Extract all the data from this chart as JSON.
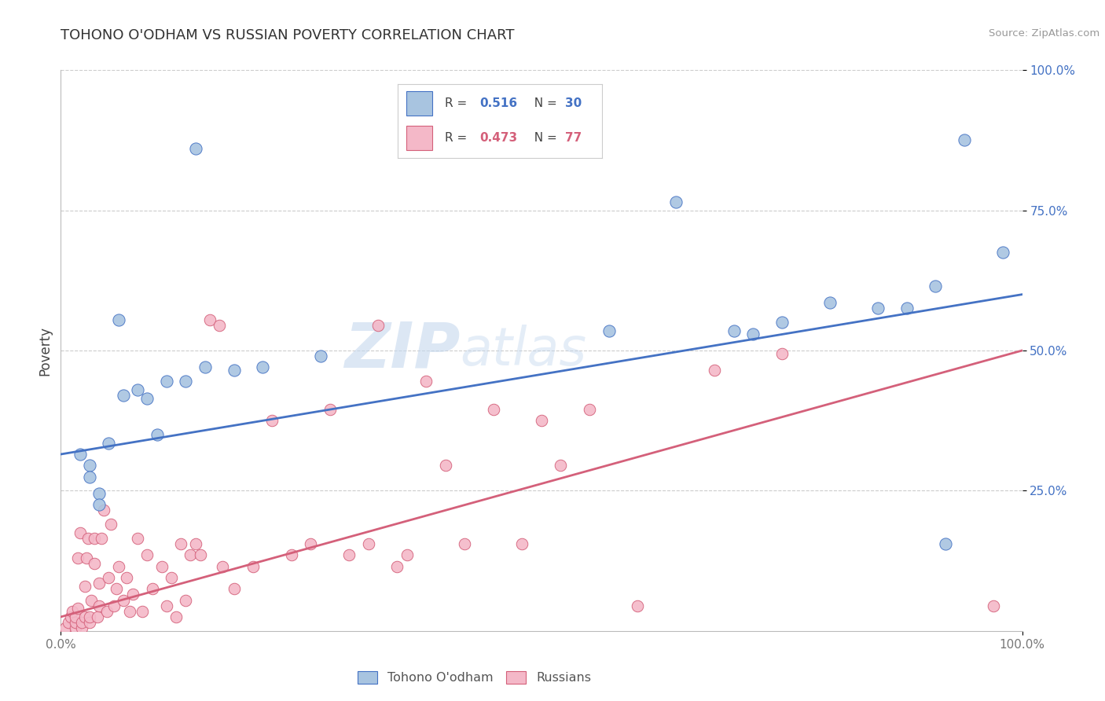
{
  "title": "TOHONO O'ODHAM VS RUSSIAN POVERTY CORRELATION CHART",
  "source": "Source: ZipAtlas.com",
  "ylabel": "Poverty",
  "xlim": [
    0,
    1.0
  ],
  "ylim": [
    0,
    1.0
  ],
  "blue_color": "#a8c4e0",
  "blue_line_color": "#4472c4",
  "pink_color": "#f4b8c8",
  "pink_line_color": "#d4607a",
  "tohono_scatter": [
    [
      0.02,
      0.315
    ],
    [
      0.03,
      0.295
    ],
    [
      0.03,
      0.275
    ],
    [
      0.04,
      0.245
    ],
    [
      0.04,
      0.225
    ],
    [
      0.05,
      0.335
    ],
    [
      0.06,
      0.555
    ],
    [
      0.065,
      0.42
    ],
    [
      0.08,
      0.43
    ],
    [
      0.09,
      0.415
    ],
    [
      0.1,
      0.35
    ],
    [
      0.11,
      0.445
    ],
    [
      0.13,
      0.445
    ],
    [
      0.15,
      0.47
    ],
    [
      0.18,
      0.465
    ],
    [
      0.21,
      0.47
    ],
    [
      0.27,
      0.49
    ],
    [
      0.14,
      0.86
    ],
    [
      0.57,
      0.535
    ],
    [
      0.64,
      0.765
    ],
    [
      0.7,
      0.535
    ],
    [
      0.72,
      0.53
    ],
    [
      0.75,
      0.55
    ],
    [
      0.8,
      0.585
    ],
    [
      0.85,
      0.575
    ],
    [
      0.88,
      0.575
    ],
    [
      0.91,
      0.615
    ],
    [
      0.94,
      0.875
    ],
    [
      0.92,
      0.155
    ],
    [
      0.98,
      0.675
    ]
  ],
  "russian_scatter": [
    [
      0.005,
      0.005
    ],
    [
      0.008,
      0.015
    ],
    [
      0.01,
      0.025
    ],
    [
      0.012,
      0.035
    ],
    [
      0.015,
      0.005
    ],
    [
      0.015,
      0.015
    ],
    [
      0.015,
      0.025
    ],
    [
      0.018,
      0.04
    ],
    [
      0.018,
      0.13
    ],
    [
      0.02,
      0.175
    ],
    [
      0.022,
      0.005
    ],
    [
      0.022,
      0.015
    ],
    [
      0.025,
      0.025
    ],
    [
      0.025,
      0.08
    ],
    [
      0.027,
      0.13
    ],
    [
      0.028,
      0.165
    ],
    [
      0.03,
      0.015
    ],
    [
      0.03,
      0.025
    ],
    [
      0.032,
      0.055
    ],
    [
      0.035,
      0.12
    ],
    [
      0.035,
      0.165
    ],
    [
      0.038,
      0.025
    ],
    [
      0.04,
      0.045
    ],
    [
      0.04,
      0.085
    ],
    [
      0.042,
      0.165
    ],
    [
      0.045,
      0.215
    ],
    [
      0.048,
      0.035
    ],
    [
      0.05,
      0.095
    ],
    [
      0.052,
      0.19
    ],
    [
      0.055,
      0.045
    ],
    [
      0.058,
      0.075
    ],
    [
      0.06,
      0.115
    ],
    [
      0.065,
      0.055
    ],
    [
      0.068,
      0.095
    ],
    [
      0.072,
      0.035
    ],
    [
      0.075,
      0.065
    ],
    [
      0.08,
      0.165
    ],
    [
      0.085,
      0.035
    ],
    [
      0.09,
      0.135
    ],
    [
      0.095,
      0.075
    ],
    [
      0.105,
      0.115
    ],
    [
      0.11,
      0.045
    ],
    [
      0.115,
      0.095
    ],
    [
      0.12,
      0.025
    ],
    [
      0.125,
      0.155
    ],
    [
      0.13,
      0.055
    ],
    [
      0.135,
      0.135
    ],
    [
      0.14,
      0.155
    ],
    [
      0.145,
      0.135
    ],
    [
      0.155,
      0.555
    ],
    [
      0.165,
      0.545
    ],
    [
      0.168,
      0.115
    ],
    [
      0.18,
      0.075
    ],
    [
      0.2,
      0.115
    ],
    [
      0.22,
      0.375
    ],
    [
      0.24,
      0.135
    ],
    [
      0.26,
      0.155
    ],
    [
      0.28,
      0.395
    ],
    [
      0.3,
      0.135
    ],
    [
      0.32,
      0.155
    ],
    [
      0.33,
      0.545
    ],
    [
      0.35,
      0.115
    ],
    [
      0.36,
      0.135
    ],
    [
      0.38,
      0.445
    ],
    [
      0.4,
      0.295
    ],
    [
      0.42,
      0.155
    ],
    [
      0.45,
      0.395
    ],
    [
      0.48,
      0.155
    ],
    [
      0.5,
      0.375
    ],
    [
      0.52,
      0.295
    ],
    [
      0.55,
      0.395
    ],
    [
      0.6,
      0.045
    ],
    [
      0.68,
      0.465
    ],
    [
      0.75,
      0.495
    ],
    [
      0.97,
      0.045
    ]
  ],
  "blue_line_x": [
    0.0,
    1.0
  ],
  "blue_line_y": [
    0.315,
    0.6
  ],
  "pink_line_x": [
    0.0,
    1.0
  ],
  "pink_line_y": [
    0.025,
    0.5
  ],
  "watermark_zip": "ZIP",
  "watermark_atlas": "atlas",
  "background_color": "#ffffff",
  "grid_color": "#cccccc"
}
